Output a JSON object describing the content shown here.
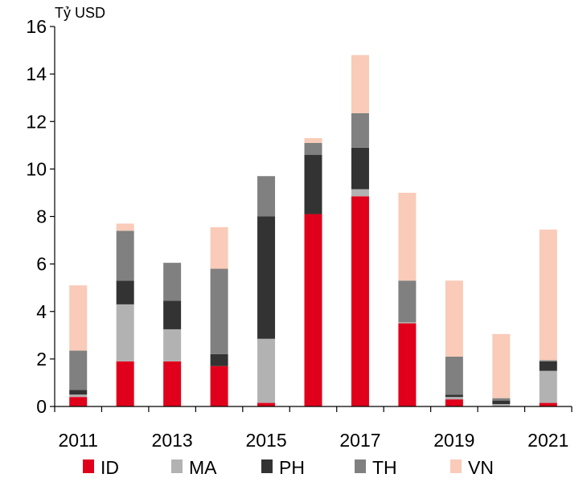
{
  "chart_data": {
    "type": "bar",
    "stacked": true,
    "unit_label": "Tỷ USD",
    "categories": [
      "2011",
      "2012",
      "2013",
      "2014",
      "2015",
      "2016",
      "2017",
      "2018",
      "2019",
      "2020",
      "2021"
    ],
    "x_tick_labels": [
      "2011",
      "2013",
      "2015",
      "2017",
      "2019",
      "2021"
    ],
    "ylim": [
      0,
      16
    ],
    "yticks": [
      0,
      2,
      4,
      6,
      8,
      10,
      12,
      14,
      16
    ],
    "grid": false,
    "legend_position": "bottom",
    "series": [
      {
        "name": "ID",
        "color": "#e0001b",
        "values": [
          0.4,
          1.9,
          1.9,
          1.7,
          0.15,
          8.1,
          8.85,
          3.5,
          0.3,
          0.0,
          0.15
        ]
      },
      {
        "name": "MA",
        "color": "#b2b2b2",
        "values": [
          0.1,
          2.4,
          1.35,
          0.0,
          2.7,
          0.0,
          0.3,
          0.05,
          0.1,
          0.1,
          1.35
        ]
      },
      {
        "name": "PH",
        "color": "#333333",
        "values": [
          0.2,
          1.0,
          1.2,
          0.5,
          5.15,
          2.5,
          1.75,
          0.0,
          0.1,
          0.15,
          0.4
        ]
      },
      {
        "name": "TH",
        "color": "#808080",
        "values": [
          1.65,
          2.1,
          1.6,
          3.6,
          1.7,
          0.5,
          1.45,
          1.75,
          1.6,
          0.1,
          0.05
        ]
      },
      {
        "name": "VN",
        "color": "#f9cbb8",
        "values": [
          2.75,
          0.3,
          0.0,
          1.75,
          0.0,
          0.2,
          2.45,
          3.7,
          3.2,
          2.7,
          5.5
        ]
      }
    ]
  }
}
